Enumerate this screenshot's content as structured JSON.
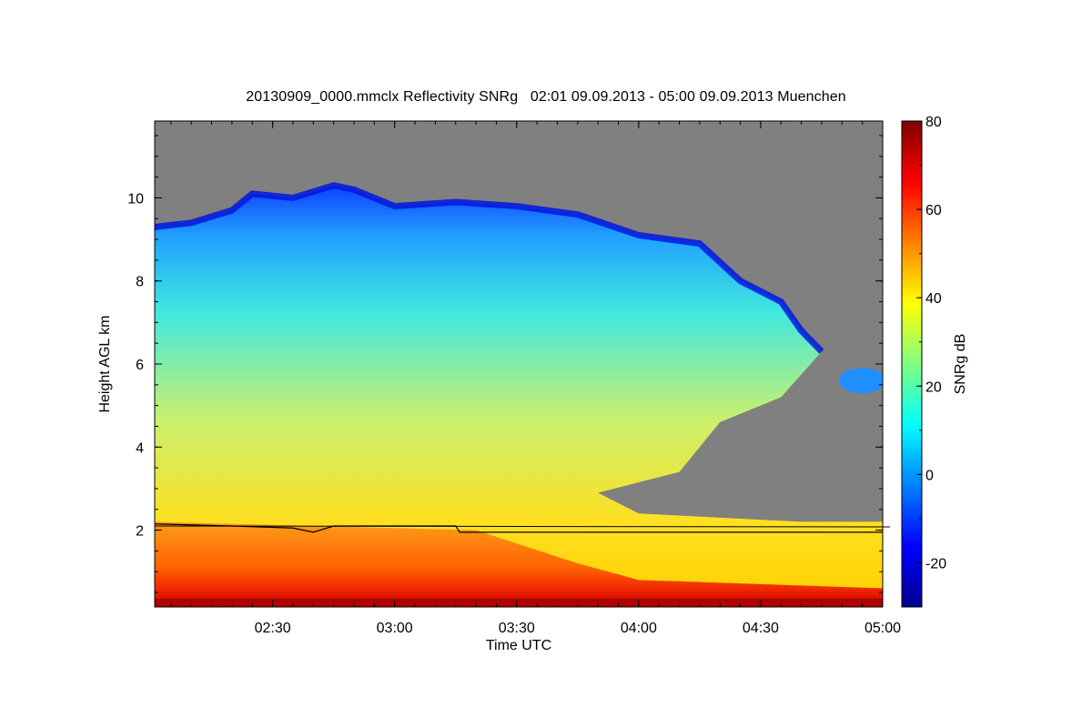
{
  "chart_data": {
    "type": "heatmap",
    "title": "20130909_0000.mmclx Reflectivity SNRg   02:01 09.09.2013 - 05:00 09.09.2013 Muenchen",
    "xlabel": "Time UTC",
    "ylabel": "Height AGL km",
    "colorbar_label": "SNRg dB",
    "xlim": [
      "02:01",
      "05:00"
    ],
    "ylim": [
      0.15,
      11.85
    ],
    "x_ticks": [
      "02:30",
      "03:00",
      "03:30",
      "04:00",
      "04:30",
      "05:00"
    ],
    "y_ticks": [
      2,
      4,
      6,
      8,
      10
    ],
    "colorbar_range": [
      -30,
      80
    ],
    "colorbar_ticks": [
      -20,
      0,
      20,
      40,
      60,
      80
    ],
    "colormap": [
      "#00008f",
      "#0000ff",
      "#0080ff",
      "#00ffff",
      "#80ff80",
      "#ffff00",
      "#ff8000",
      "#ff0000",
      "#800000"
    ],
    "no_signal_color": "#808080",
    "cloud_top_km": [
      [
        "02:01",
        9.3
      ],
      [
        "02:10",
        9.4
      ],
      [
        "02:20",
        9.7
      ],
      [
        "02:25",
        10.1
      ],
      [
        "02:35",
        10.0
      ],
      [
        "02:45",
        10.3
      ],
      [
        "02:50",
        10.2
      ],
      [
        "03:00",
        9.8
      ],
      [
        "03:15",
        9.9
      ],
      [
        "03:30",
        9.8
      ],
      [
        "03:45",
        9.6
      ],
      [
        "04:00",
        9.1
      ],
      [
        "04:15",
        8.9
      ],
      [
        "04:25",
        8.0
      ],
      [
        "04:35",
        7.5
      ],
      [
        "04:40",
        6.8
      ],
      [
        "04:45",
        6.3
      ]
    ],
    "boundary_layer_km": [
      [
        "02:01",
        2.15
      ],
      [
        "02:20",
        2.1
      ],
      [
        "02:35",
        2.05
      ],
      [
        "02:40",
        1.95
      ],
      [
        "02:45",
        2.1
      ],
      [
        "03:15",
        2.1
      ],
      [
        "03:16",
        1.95
      ],
      [
        "05:00",
        1.95
      ]
    ]
  }
}
